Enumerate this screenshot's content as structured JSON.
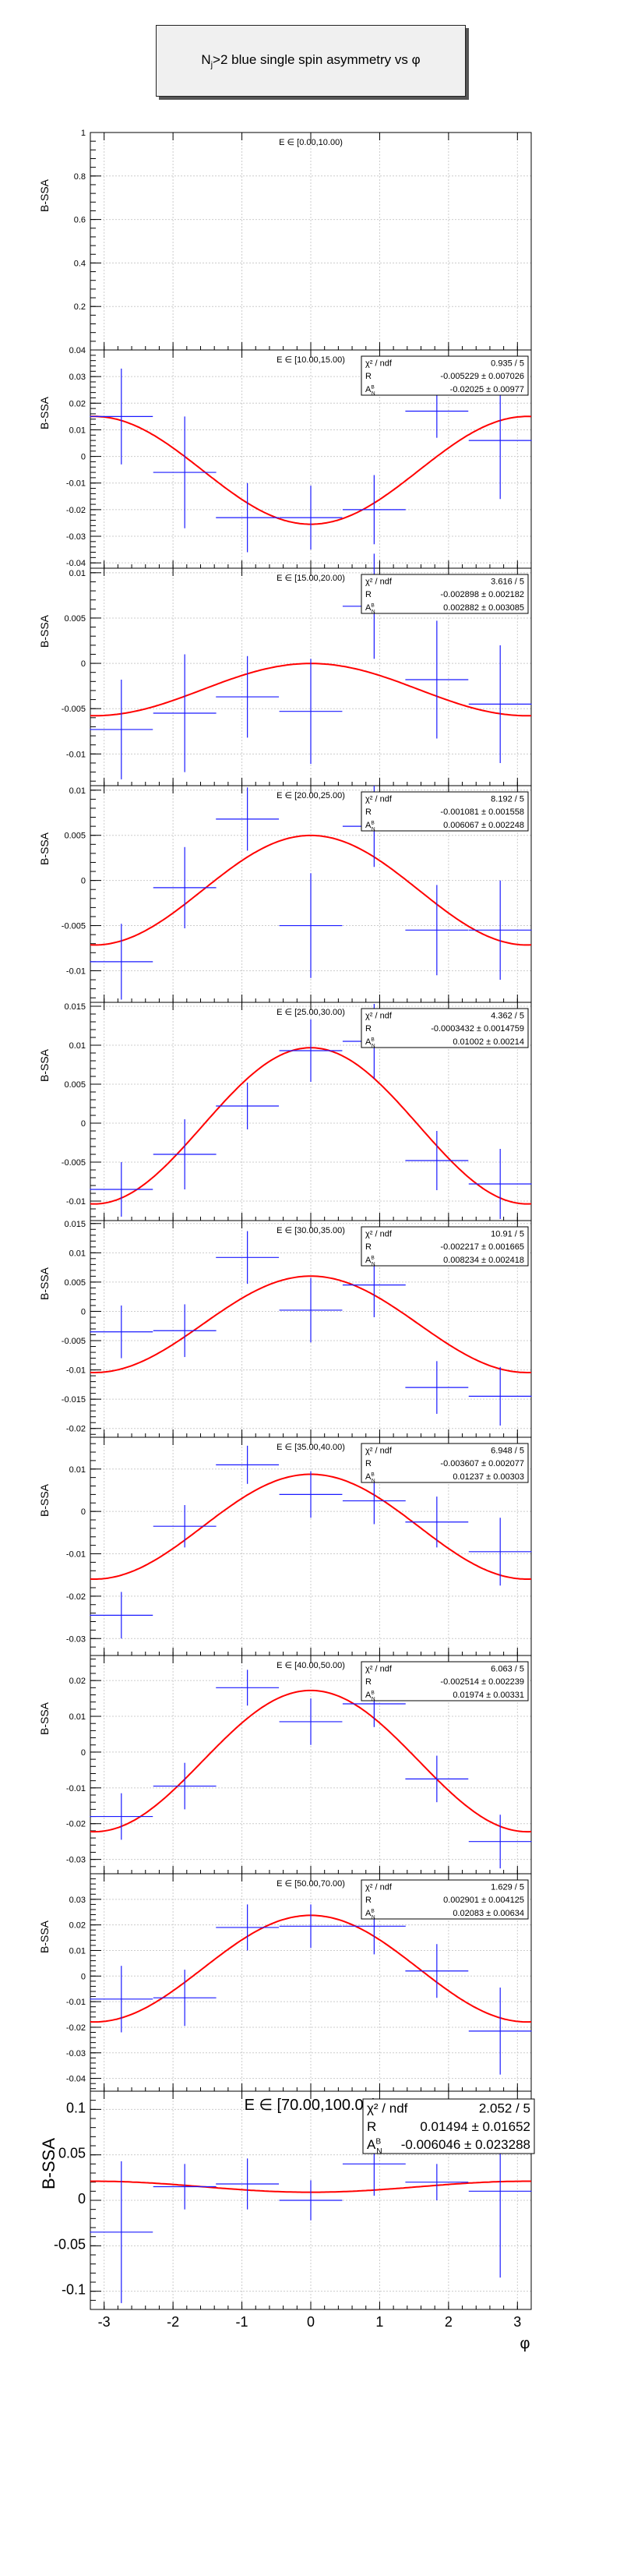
{
  "title": {
    "prefix": "N",
    "sub": "j",
    "suffix": ">2 blue single spin asymmetry vs ",
    "phi": "φ"
  },
  "x_axis": {
    "label": "φ",
    "ticks": [
      -3,
      -2,
      -1,
      0,
      1,
      2,
      3
    ],
    "range": [
      -3.2,
      3.2
    ]
  },
  "colors": {
    "points": "#1a1aff",
    "fit": "#ff0000",
    "grid": "#cccccc",
    "frame": "#000000"
  },
  "stats_labels": {
    "chi": "χ² / ndf",
    "r": "R",
    "a": "A",
    "a_sup": "B",
    "a_sub": "N"
  },
  "chart_data": [
    {
      "type": "scatter",
      "bin": "E ∈ [0.00,10.00)",
      "ylabel": "B-SSA",
      "ylim": [
        0,
        1
      ],
      "yticks": [
        0.2,
        0.4,
        0.6,
        0.8,
        1
      ],
      "points": [],
      "fit": null,
      "stats": null
    },
    {
      "type": "scatter",
      "bin": "E ∈ [10.00,15.00)",
      "ylabel": "B-SSA",
      "ylim": [
        -0.042,
        0.04
      ],
      "yticks": [
        -0.04,
        -0.03,
        -0.02,
        -0.01,
        0,
        0.01,
        0.02,
        0.03,
        0.04
      ],
      "points": [
        {
          "x": -2.75,
          "y": 0.015,
          "ey": 0.018
        },
        {
          "x": -1.83,
          "y": -0.006,
          "ey": 0.021
        },
        {
          "x": -0.92,
          "y": -0.023,
          "ey": 0.013
        },
        {
          "x": 0,
          "y": -0.023,
          "ey": 0.012
        },
        {
          "x": 0.92,
          "y": -0.02,
          "ey": 0.013
        },
        {
          "x": 1.83,
          "y": 0.017,
          "ey": 0.01
        },
        {
          "x": 2.75,
          "y": 0.006,
          "ey": 0.022
        }
      ],
      "fit": {
        "offset": -0.005229,
        "amp": -0.02025
      },
      "stats": {
        "chi": "0.935 / 5",
        "r": "-0.005229 ± 0.007026",
        "a": "-0.02025 ± 0.00977"
      }
    },
    {
      "type": "scatter",
      "bin": "E ∈ [15.00,20.00)",
      "ylabel": "B-SSA",
      "ylim": [
        -0.0135,
        0.0105
      ],
      "yticks": [
        -0.01,
        -0.005,
        0,
        0.005,
        0.01
      ],
      "points": [
        {
          "x": -2.75,
          "y": -0.0073,
          "ey": 0.0055
        },
        {
          "x": -1.83,
          "y": -0.0055,
          "ey": 0.0065
        },
        {
          "x": -0.92,
          "y": -0.0037,
          "ey": 0.0045
        },
        {
          "x": 0,
          "y": -0.0053,
          "ey": 0.0058
        },
        {
          "x": 0.92,
          "y": 0.0063,
          "ey": 0.0058
        },
        {
          "x": 1.83,
          "y": -0.0018,
          "ey": 0.0065
        },
        {
          "x": 2.75,
          "y": -0.0045,
          "ey": 0.0065
        }
      ],
      "fit": {
        "offset": -0.002898,
        "amp": 0.002882
      },
      "stats": {
        "chi": "3.616 / 5",
        "r": "-0.002898 ± 0.002182",
        "a": "0.002882 ± 0.003085"
      }
    },
    {
      "type": "scatter",
      "bin": "E ∈ [20.00,25.00)",
      "ylabel": "B-SSA",
      "ylim": [
        -0.0135,
        0.0105
      ],
      "yticks": [
        -0.01,
        -0.005,
        0,
        0.005,
        0.01
      ],
      "points": [
        {
          "x": -2.75,
          "y": -0.009,
          "ey": 0.0042
        },
        {
          "x": -1.83,
          "y": -0.0008,
          "ey": 0.0045
        },
        {
          "x": -0.92,
          "y": 0.0068,
          "ey": 0.0035
        },
        {
          "x": 0,
          "y": -0.005,
          "ey": 0.0058
        },
        {
          "x": 0.92,
          "y": 0.006,
          "ey": 0.0045
        },
        {
          "x": 1.83,
          "y": -0.0055,
          "ey": 0.005
        },
        {
          "x": 2.75,
          "y": -0.0055,
          "ey": 0.0055
        }
      ],
      "fit": {
        "offset": -0.001081,
        "amp": 0.006067
      },
      "stats": {
        "chi": "8.192 / 5",
        "r": "-0.001081 ± 0.001558",
        "a": "0.006067 ± 0.002248"
      }
    },
    {
      "type": "scatter",
      "bin": "E ∈ [25.00,30.00)",
      "ylabel": "B-SSA",
      "ylim": [
        -0.0125,
        0.0155
      ],
      "yticks": [
        -0.01,
        -0.005,
        0,
        0.005,
        0.01,
        0.015
      ],
      "points": [
        {
          "x": -2.75,
          "y": -0.0085,
          "ey": 0.0035
        },
        {
          "x": -1.83,
          "y": -0.004,
          "ey": 0.0045
        },
        {
          "x": -0.92,
          "y": 0.0022,
          "ey": 0.003
        },
        {
          "x": 0,
          "y": 0.0093,
          "ey": 0.004
        },
        {
          "x": 0.92,
          "y": 0.0105,
          "ey": 0.0048
        },
        {
          "x": 1.83,
          "y": -0.0048,
          "ey": 0.0038
        },
        {
          "x": 2.75,
          "y": -0.0078,
          "ey": 0.0045
        }
      ],
      "fit": {
        "offset": -0.0003432,
        "amp": 0.01002
      },
      "stats": {
        "chi": "4.362 / 5",
        "r": "-0.0003432 ± 0.0014759",
        "a": "0.01002 ± 0.00214"
      }
    },
    {
      "type": "scatter",
      "bin": "E ∈ [30.00,35.00)",
      "ylabel": "B-SSA",
      "ylim": [
        -0.0215,
        0.0155
      ],
      "yticks": [
        -0.02,
        -0.015,
        -0.01,
        -0.005,
        0,
        0.005,
        0.01,
        0.015
      ],
      "points": [
        {
          "x": -2.75,
          "y": -0.0035,
          "ey": 0.0045
        },
        {
          "x": -1.83,
          "y": -0.0033,
          "ey": 0.0045
        },
        {
          "x": -0.92,
          "y": 0.0092,
          "ey": 0.0045
        },
        {
          "x": 0,
          "y": 0.0002,
          "ey": 0.0055
        },
        {
          "x": 0.92,
          "y": 0.0045,
          "ey": 0.0055
        },
        {
          "x": 1.83,
          "y": -0.013,
          "ey": 0.0045
        },
        {
          "x": 2.75,
          "y": -0.0145,
          "ey": 0.005
        }
      ],
      "fit": {
        "offset": -0.002217,
        "amp": 0.008234
      },
      "stats": {
        "chi": "10.91 / 5",
        "r": "-0.002217 ± 0.001665",
        "a": "0.008234 ± 0.002418"
      }
    },
    {
      "type": "scatter",
      "bin": "E ∈ [35.00,40.00)",
      "ylabel": "B-SSA",
      "ylim": [
        -0.034,
        0.0175
      ],
      "yticks": [
        -0.03,
        -0.02,
        -0.01,
        0,
        0.01
      ],
      "points": [
        {
          "x": -2.75,
          "y": -0.0245,
          "ey": 0.0055
        },
        {
          "x": -1.83,
          "y": -0.0035,
          "ey": 0.005
        },
        {
          "x": -0.92,
          "y": 0.011,
          "ey": 0.0045
        },
        {
          "x": 0,
          "y": 0.004,
          "ey": 0.0055
        },
        {
          "x": 0.92,
          "y": 0.0025,
          "ey": 0.0055
        },
        {
          "x": 1.83,
          "y": -0.0025,
          "ey": 0.006
        },
        {
          "x": 2.75,
          "y": -0.0095,
          "ey": 0.008
        }
      ],
      "fit": {
        "offset": -0.003607,
        "amp": 0.01237
      },
      "stats": {
        "chi": "6.948 / 5",
        "r": "-0.003607 ± 0.002077",
        "a": "0.01237 ± 0.00303"
      }
    },
    {
      "type": "scatter",
      "bin": "E ∈ [40.00,50.00)",
      "ylabel": "B-SSA",
      "ylim": [
        -0.034,
        0.027
      ],
      "yticks": [
        -0.03,
        -0.02,
        -0.01,
        0,
        0.01,
        0.02
      ],
      "points": [
        {
          "x": -2.75,
          "y": -0.018,
          "ey": 0.0065
        },
        {
          "x": -1.83,
          "y": -0.0095,
          "ey": 0.0065
        },
        {
          "x": -0.92,
          "y": 0.018,
          "ey": 0.005
        },
        {
          "x": 0,
          "y": 0.0085,
          "ey": 0.0065
        },
        {
          "x": 0.92,
          "y": 0.0135,
          "ey": 0.0065
        },
        {
          "x": 1.83,
          "y": -0.0075,
          "ey": 0.0065
        },
        {
          "x": 2.75,
          "y": -0.025,
          "ey": 0.0075
        }
      ],
      "fit": {
        "offset": -0.002514,
        "amp": 0.01974
      },
      "stats": {
        "chi": "6.063 / 5",
        "r": "-0.002514 ± 0.002239",
        "a": "0.01974 ± 0.00331"
      }
    },
    {
      "type": "scatter",
      "bin": "E ∈ [50.00,70.00)",
      "ylabel": "B-SSA",
      "ylim": [
        -0.045,
        0.04
      ],
      "yticks": [
        -0.04,
        -0.03,
        -0.02,
        -0.01,
        0,
        0.01,
        0.02,
        0.03
      ],
      "points": [
        {
          "x": -2.75,
          "y": -0.009,
          "ey": 0.013
        },
        {
          "x": -1.83,
          "y": -0.0085,
          "ey": 0.011
        },
        {
          "x": -0.92,
          "y": 0.019,
          "ey": 0.009
        },
        {
          "x": 0,
          "y": 0.0195,
          "ey": 0.0085
        },
        {
          "x": 0.92,
          "y": 0.0195,
          "ey": 0.011
        },
        {
          "x": 1.83,
          "y": 0.002,
          "ey": 0.0105
        },
        {
          "x": 2.75,
          "y": -0.0215,
          "ey": 0.017
        }
      ],
      "fit": {
        "offset": 0.002901,
        "amp": 0.02083
      },
      "stats": {
        "chi": "1.629 / 5",
        "r": "0.002901 ± 0.004125",
        "a": "0.02083 ± 0.00634"
      }
    },
    {
      "type": "scatter",
      "bin": "E ∈ [70.00,100.00)",
      "ylabel": "B-SSA",
      "ylim": [
        -0.12,
        0.12
      ],
      "yticks": [
        -0.1,
        -0.05,
        0,
        0.05,
        0.1
      ],
      "points": [
        {
          "x": -2.75,
          "y": -0.035,
          "ey": 0.078
        },
        {
          "x": -1.83,
          "y": 0.015,
          "ey": 0.025
        },
        {
          "x": -0.92,
          "y": 0.018,
          "ey": 0.028
        },
        {
          "x": 0,
          "y": 0,
          "ey": 0.022
        },
        {
          "x": 0.92,
          "y": 0.04,
          "ey": 0.035
        },
        {
          "x": 1.83,
          "y": 0.02,
          "ey": 0.02
        },
        {
          "x": 2.75,
          "y": 0.01,
          "ey": 0.095
        }
      ],
      "fit": {
        "offset": 0.01494,
        "amp": -0.006046
      },
      "stats": {
        "chi": "2.052 / 5",
        "r": "0.01494 ± 0.01652",
        "a": "-0.006046 ± 0.023288"
      }
    }
  ]
}
